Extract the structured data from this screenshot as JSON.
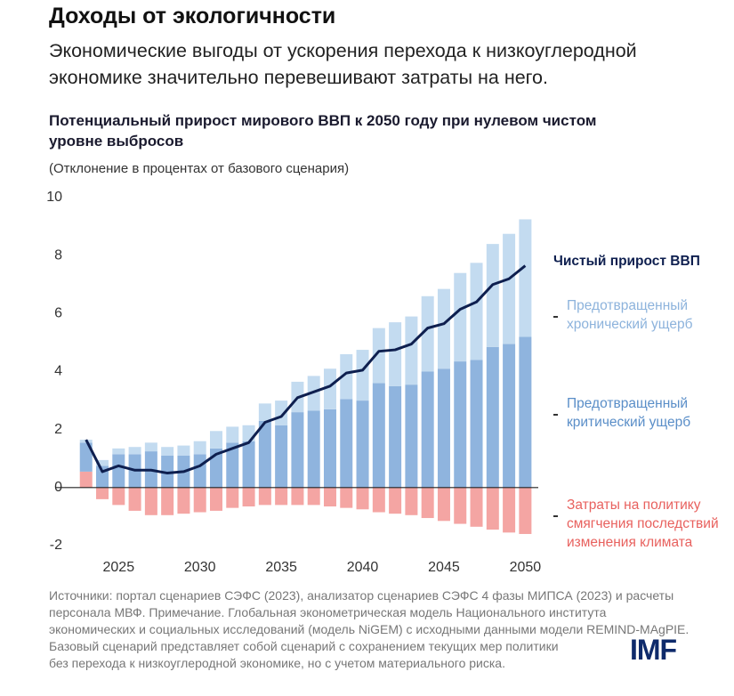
{
  "header": {
    "title": "Доходы от экологичности",
    "subtitle": [
      "Экономические выгоды от ускорения перехода к низкоуглеродной",
      "экономике значительно перевешивают затраты на него."
    ]
  },
  "chart_data": {
    "type": "bar",
    "title": [
      "Потенциальный прирост мирового ВВП к 2050 году при нулевом чистом",
      "уровне выбросов"
    ],
    "subtitle": "(Отклонение в процентах от базового сценария)",
    "x": [
      2023,
      2024,
      2025,
      2026,
      2027,
      2028,
      2029,
      2030,
      2031,
      2032,
      2033,
      2034,
      2035,
      2036,
      2037,
      2038,
      2039,
      2040,
      2041,
      2042,
      2043,
      2044,
      2045,
      2046,
      2047,
      2048,
      2049,
      2050
    ],
    "xlim": [
      2021.1,
      2050.8
    ],
    "xticks": [
      2025,
      2030,
      2035,
      2040,
      2045,
      2050
    ],
    "ylim": [
      -2,
      10
    ],
    "yticks": [
      10,
      8,
      6,
      4,
      2,
      0,
      -2
    ],
    "grid": false,
    "series": [
      {
        "name": "Чистый прирост ВВП",
        "type": "line",
        "color": "#0e1f4f",
        "values": [
          1.65,
          0.55,
          0.75,
          0.6,
          0.6,
          0.5,
          0.55,
          0.75,
          1.15,
          1.35,
          1.55,
          2.25,
          2.45,
          3.1,
          3.3,
          3.5,
          3.95,
          4.05,
          4.7,
          4.75,
          4.95,
          5.5,
          5.65,
          6.15,
          6.4,
          7.0,
          7.2,
          7.65
        ]
      },
      {
        "name": "Предотвращенный хронический ущерб",
        "type": "bar",
        "color": "#c3dbf0",
        "values": [
          0.1,
          0.2,
          0.2,
          0.25,
          0.3,
          0.3,
          0.35,
          0.45,
          0.6,
          0.55,
          0.55,
          0.6,
          0.85,
          1.05,
          1.2,
          1.4,
          1.55,
          1.75,
          1.9,
          2.2,
          2.35,
          2.6,
          2.75,
          3.05,
          3.35,
          3.55,
          3.8,
          4.05
        ]
      },
      {
        "name": "Предотвращенный критический ущерб",
        "type": "bar",
        "color": "#8fb4de",
        "values": [
          1.0,
          0.75,
          1.15,
          1.15,
          1.25,
          1.1,
          1.1,
          1.15,
          1.35,
          1.55,
          1.6,
          2.3,
          2.15,
          2.6,
          2.65,
          2.7,
          3.05,
          3.0,
          3.6,
          3.5,
          3.55,
          4.0,
          4.1,
          4.35,
          4.4,
          4.85,
          4.95,
          5.2
        ]
      },
      {
        "name": "Затраты на политику смягчения последствий изменения климата",
        "type": "bar",
        "color": "#f4a5a3",
        "values": [
          0.55,
          -0.4,
          -0.6,
          -0.8,
          -0.95,
          -0.95,
          -0.9,
          -0.85,
          -0.8,
          -0.7,
          -0.65,
          -0.6,
          -0.6,
          -0.6,
          -0.6,
          -0.65,
          -0.7,
          -0.75,
          -0.85,
          -0.9,
          -0.95,
          -1.05,
          -1.15,
          -1.25,
          -1.35,
          -1.45,
          -1.55,
          -1.6
        ]
      }
    ],
    "legend_colors": [
      "#0e1f4f",
      "#8db3dc",
      "#5a8ec8",
      "#e8615e"
    ]
  },
  "footer": {
    "source": [
      "Источники: портал сценариев СЭФС (2023), анализатор сценариев СЭФС 4 фазы МИПСА (2023) и расчеты",
      "персонала МВФ. Примечание. Глобальная эконометрическая модель Национального института",
      "экономических и социальных исследований (модель NiGEM) с исходными данными модели REMIND-MAgPIE.",
      "Базовый сценарий представляет собой сценарий с сохранением текущих мер политики",
      "без перехода к низкоуглеродной экономике, но с учетом материального риска."
    ],
    "logo": "IMF"
  }
}
